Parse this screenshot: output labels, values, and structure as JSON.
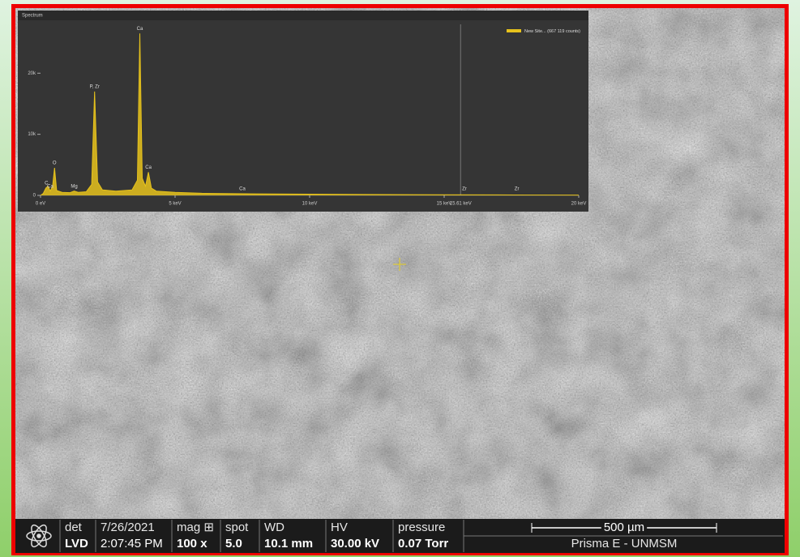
{
  "chart_data": {
    "type": "line",
    "title": "Spectrum",
    "x": [
      0,
      0.1,
      0.2,
      0.28,
      0.36,
      0.45,
      0.52,
      0.6,
      0.8,
      1.1,
      1.25,
      1.4,
      1.7,
      1.9,
      2.01,
      2.12,
      2.3,
      2.8,
      3.4,
      3.6,
      3.69,
      3.78,
      3.9,
      4.01,
      4.12,
      4.3,
      5,
      6,
      8,
      10,
      12,
      15,
      17,
      20
    ],
    "values": [
      0,
      300,
      1200,
      1500,
      700,
      1500,
      4500,
      800,
      500,
      450,
      700,
      500,
      600,
      1800,
      17000,
      2200,
      900,
      700,
      900,
      2500,
      26500,
      2800,
      1500,
      3800,
      1200,
      700,
      500,
      350,
      250,
      200,
      150,
      100,
      80,
      50
    ],
    "series_name": "New Site... (667 119 counts)",
    "color": "#e6c21c",
    "xlim": [
      0,
      20
    ],
    "xticks": [
      {
        "value": 0,
        "label": "0 eV"
      },
      {
        "value": 5,
        "label": "5 keV"
      },
      {
        "value": 10,
        "label": "10 keV"
      },
      {
        "value": 15,
        "label": "15 keV"
      },
      {
        "value": 20,
        "label": "20 keV"
      }
    ],
    "ylim": [
      0,
      28000
    ],
    "yticks": [
      {
        "value": 0,
        "label": "0"
      },
      {
        "value": 10000,
        "label": "10k"
      },
      {
        "value": 20000,
        "label": "20k"
      }
    ],
    "cursor": {
      "value": 15.61,
      "label": "15.61 keV"
    },
    "peak_labels": [
      {
        "text": "C",
        "x": 0.22
      },
      {
        "text": "Ca",
        "x": 0.36
      },
      {
        "text": "O",
        "x": 0.52
      },
      {
        "text": "Mg",
        "x": 1.25
      },
      {
        "text": "P, Zr",
        "x": 2.01
      },
      {
        "text": "Ca",
        "x": 3.69
      },
      {
        "text": "Ca",
        "x": 4.01
      },
      {
        "text": "Ca",
        "x": 7.5
      },
      {
        "text": "Zr",
        "x": 15.75
      },
      {
        "text": "Zr",
        "x": 17.7
      }
    ]
  },
  "info_bar": {
    "fields": [
      {
        "label": "det",
        "value": "LVD"
      },
      {
        "label": "7/26/2021",
        "value": "2:07:45 PM"
      },
      {
        "label": "mag ⊞",
        "value": "100 x"
      },
      {
        "label": "spot",
        "value": "5.0"
      },
      {
        "label": "WD",
        "value": "10.1 mm"
      },
      {
        "label": "HV",
        "value": "30.00 kV"
      },
      {
        "label": "pressure",
        "value": "0.07 Torr"
      }
    ],
    "scale_bar": "500 µm",
    "instrument": "Prisma E - UNMSM"
  }
}
